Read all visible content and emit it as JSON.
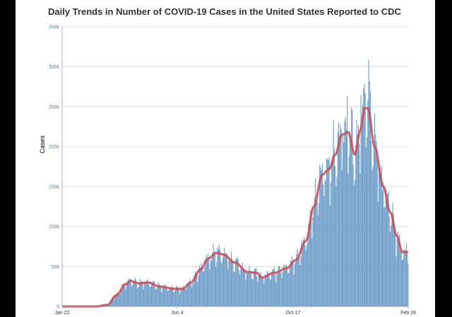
{
  "title": "Daily Trends in Number of COVID-19 Cases in the United States Reported to CDC",
  "colors": {
    "bar": "#6f9ec9",
    "line": "#c94a55",
    "grid": "#cccccc",
    "ytick": "#4a80b8"
  },
  "chart_data": {
    "type": "bar",
    "title": "Daily Trends in Number of COVID-19 Cases in the United States Reported to CDC",
    "xlabel": "",
    "ylabel": "Cases",
    "x_ticks": [
      "Jan 22",
      "Jun 4",
      "Oct 17",
      "Feb 28"
    ],
    "y_ticks": [
      "0",
      "50k",
      "100k",
      "150k",
      "200k",
      "250k",
      "300k",
      "350k"
    ],
    "ylim": [
      0,
      350000
    ],
    "date_range": [
      "2020-01-22",
      "2021-02-28"
    ],
    "grid": true,
    "legend": "none",
    "series": [
      {
        "kind": "bar",
        "resolution": "daily"
      },
      {
        "kind": "line",
        "resolution": "7-day moving average"
      }
    ],
    "trend_anchors": [
      [
        "2020-01-22",
        0
      ],
      [
        "2020-03-01",
        0
      ],
      [
        "2020-03-15",
        2000
      ],
      [
        "2020-03-25",
        14000
      ],
      [
        "2020-04-05",
        28000
      ],
      [
        "2020-04-10",
        32000
      ],
      [
        "2020-04-20",
        29000
      ],
      [
        "2020-05-01",
        30000
      ],
      [
        "2020-05-15",
        25000
      ],
      [
        "2020-06-01",
        22000
      ],
      [
        "2020-06-10",
        22000
      ],
      [
        "2020-06-20",
        30000
      ],
      [
        "2020-07-01",
        46000
      ],
      [
        "2020-07-10",
        60000
      ],
      [
        "2020-07-20",
        67000
      ],
      [
        "2020-07-28",
        65000
      ],
      [
        "2020-08-10",
        55000
      ],
      [
        "2020-08-25",
        43000
      ],
      [
        "2020-09-05",
        42000
      ],
      [
        "2020-09-10",
        36000
      ],
      [
        "2020-09-25",
        42000
      ],
      [
        "2020-10-10",
        48000
      ],
      [
        "2020-10-20",
        58000
      ],
      [
        "2020-11-01",
        82000
      ],
      [
        "2020-11-10",
        125000
      ],
      [
        "2020-11-20",
        165000
      ],
      [
        "2020-11-28",
        172000
      ],
      [
        "2020-12-05",
        190000
      ],
      [
        "2020-12-13",
        215000
      ],
      [
        "2020-12-20",
        218000
      ],
      [
        "2020-12-28",
        190000
      ],
      [
        "2021-01-03",
        220000
      ],
      [
        "2021-01-08",
        248000
      ],
      [
        "2021-01-12",
        248000
      ],
      [
        "2021-01-20",
        200000
      ],
      [
        "2021-01-30",
        150000
      ],
      [
        "2021-02-07",
        118000
      ],
      [
        "2021-02-15",
        88000
      ],
      [
        "2021-02-21",
        68000
      ],
      [
        "2021-02-28",
        68000
      ]
    ]
  }
}
